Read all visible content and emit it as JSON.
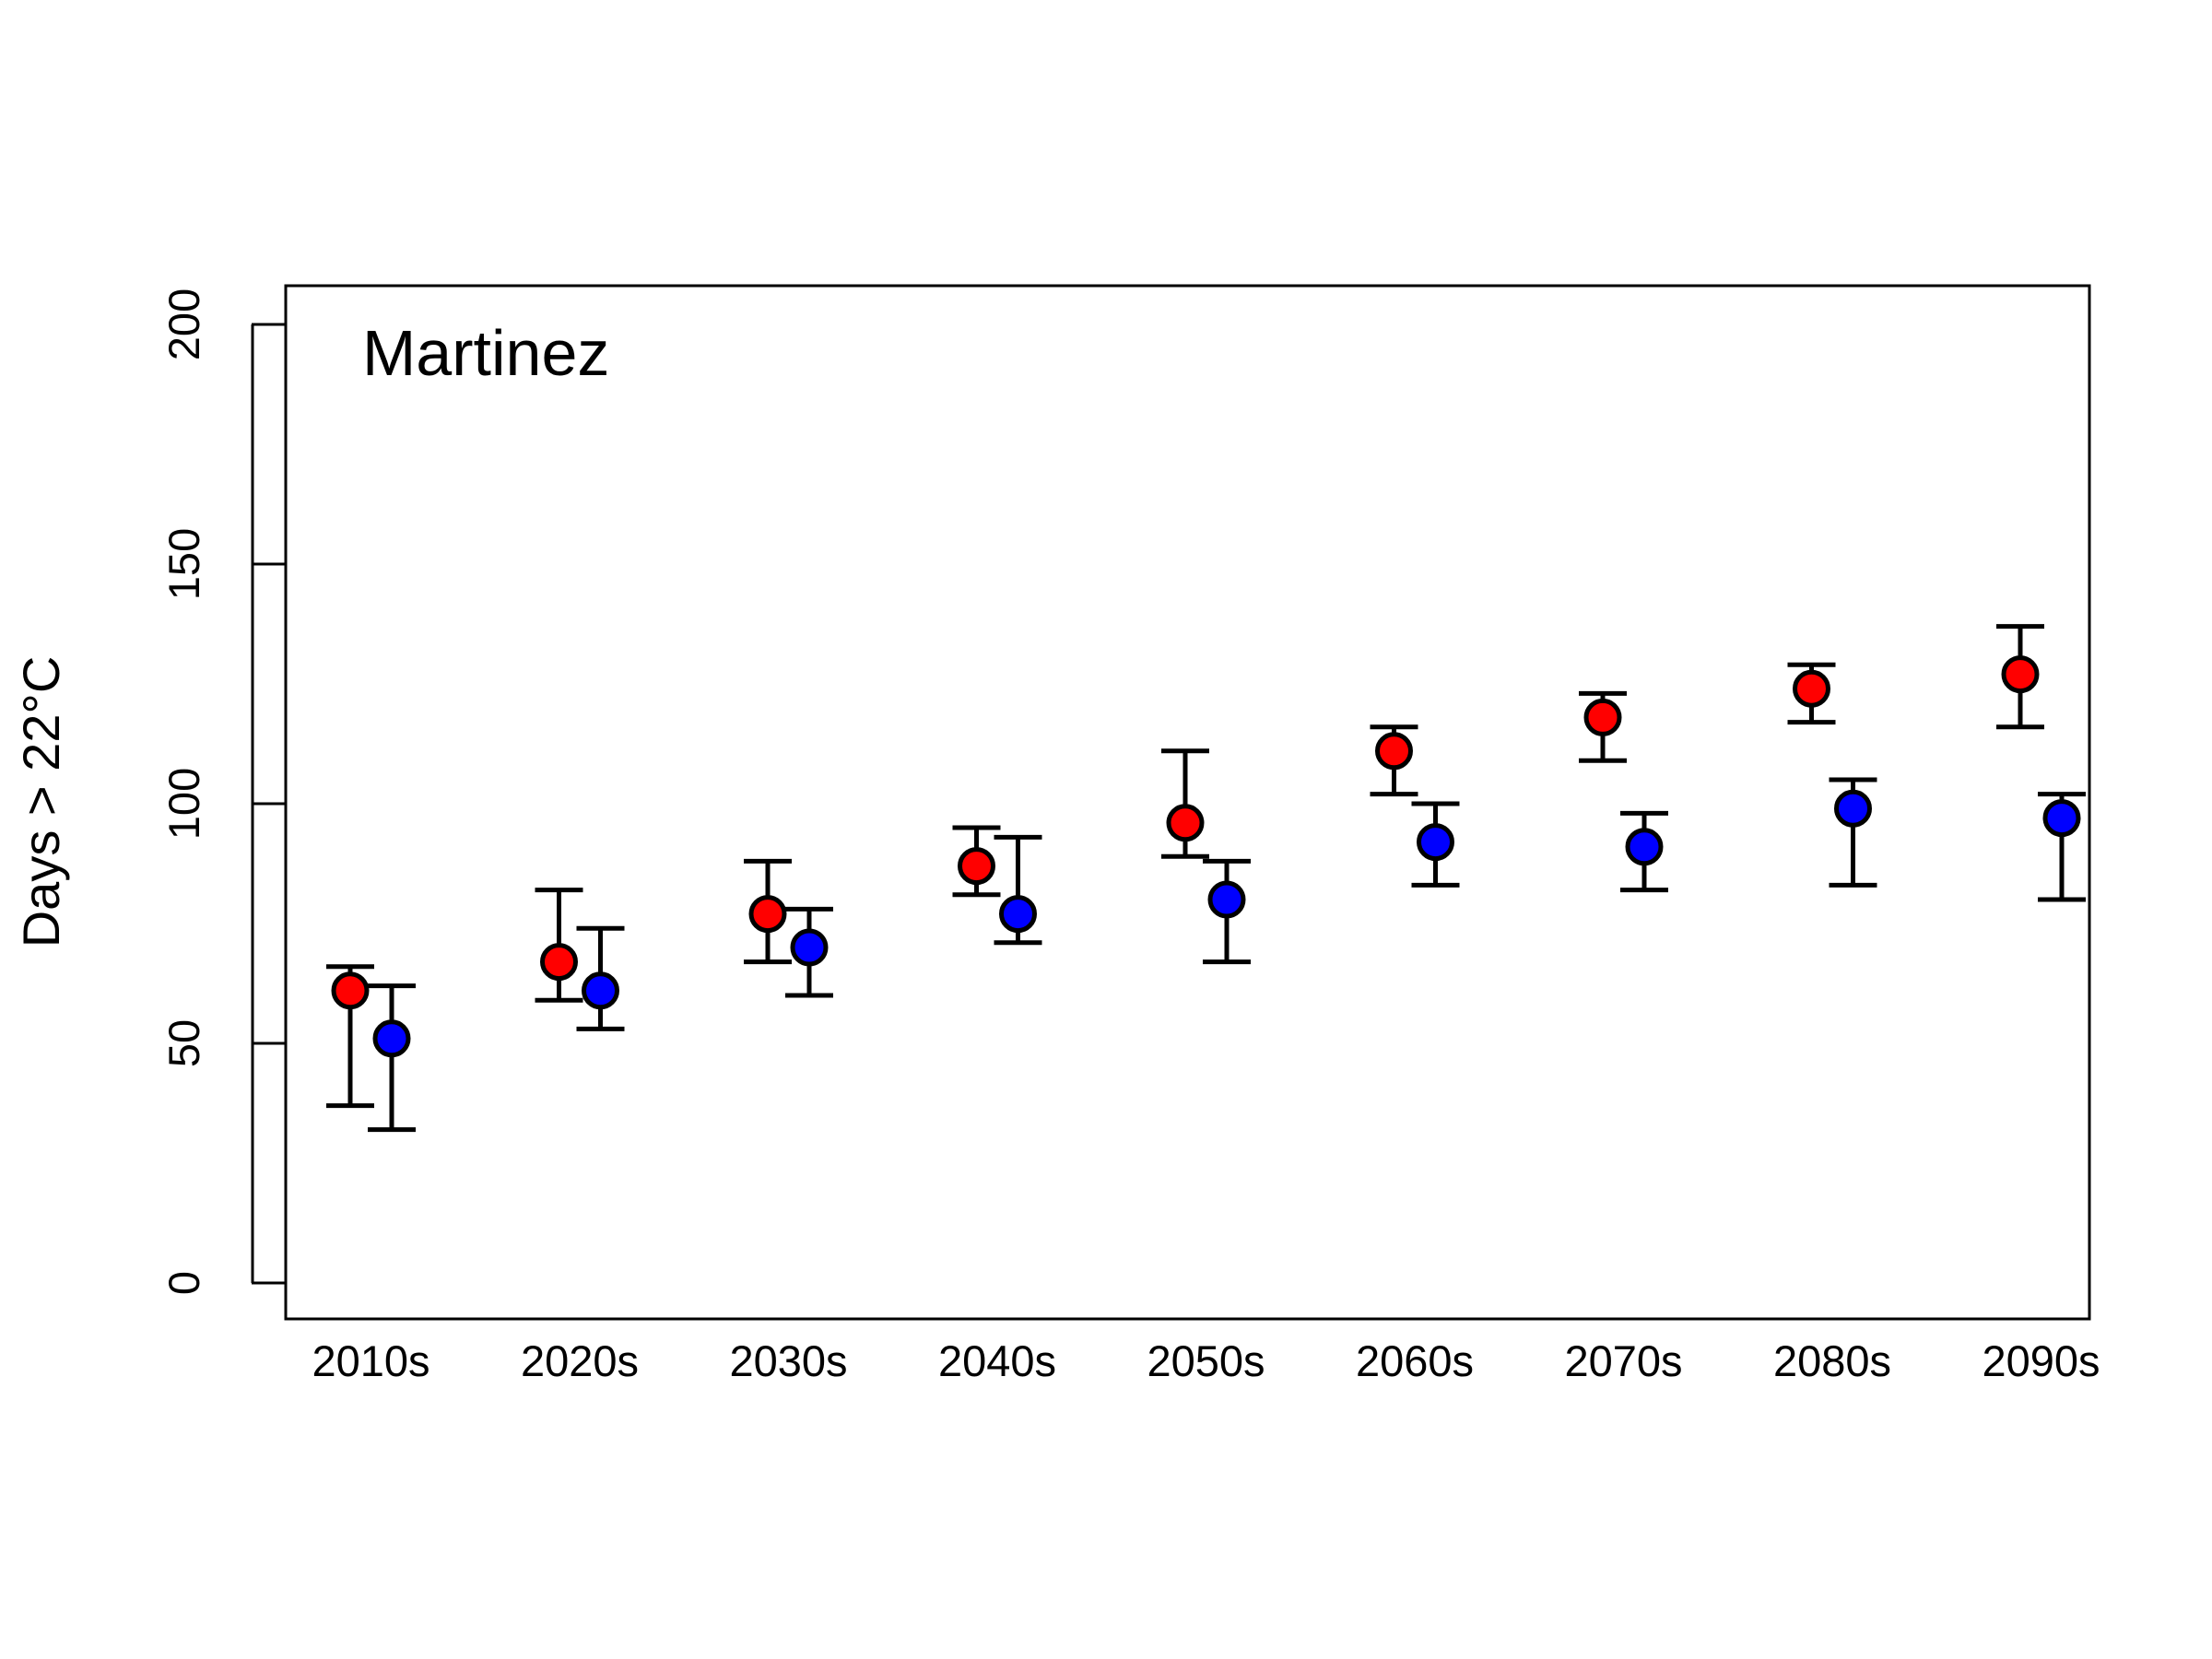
{
  "chart_data": {
    "type": "scatter",
    "title": "Martinez",
    "xlabel": "",
    "ylabel": "Days > 22°C",
    "ylim": [
      0,
      200
    ],
    "yticks": [
      0,
      50,
      100,
      150,
      200
    ],
    "categories": [
      "2010s",
      "2020s",
      "2030s",
      "2040s",
      "2050s",
      "2060s",
      "2070s",
      "2080s",
      "2090s"
    ],
    "grid": false,
    "series": [
      {
        "color": "#ff0000",
        "values": [
          61,
          67,
          77,
          87,
          96,
          111,
          118,
          124,
          127
        ],
        "lower": [
          37,
          59,
          67,
          81,
          89,
          102,
          109,
          117,
          116
        ],
        "upper": [
          66,
          82,
          88,
          95,
          111,
          116,
          123,
          129,
          137
        ]
      },
      {
        "color": "#0000ff",
        "values": [
          51,
          61,
          70,
          77,
          80,
          92,
          91,
          99,
          97
        ],
        "lower": [
          32,
          53,
          60,
          71,
          67,
          83,
          82,
          83,
          80
        ],
        "upper": [
          62,
          74,
          78,
          93,
          88,
          100,
          98,
          105,
          102
        ]
      }
    ]
  }
}
